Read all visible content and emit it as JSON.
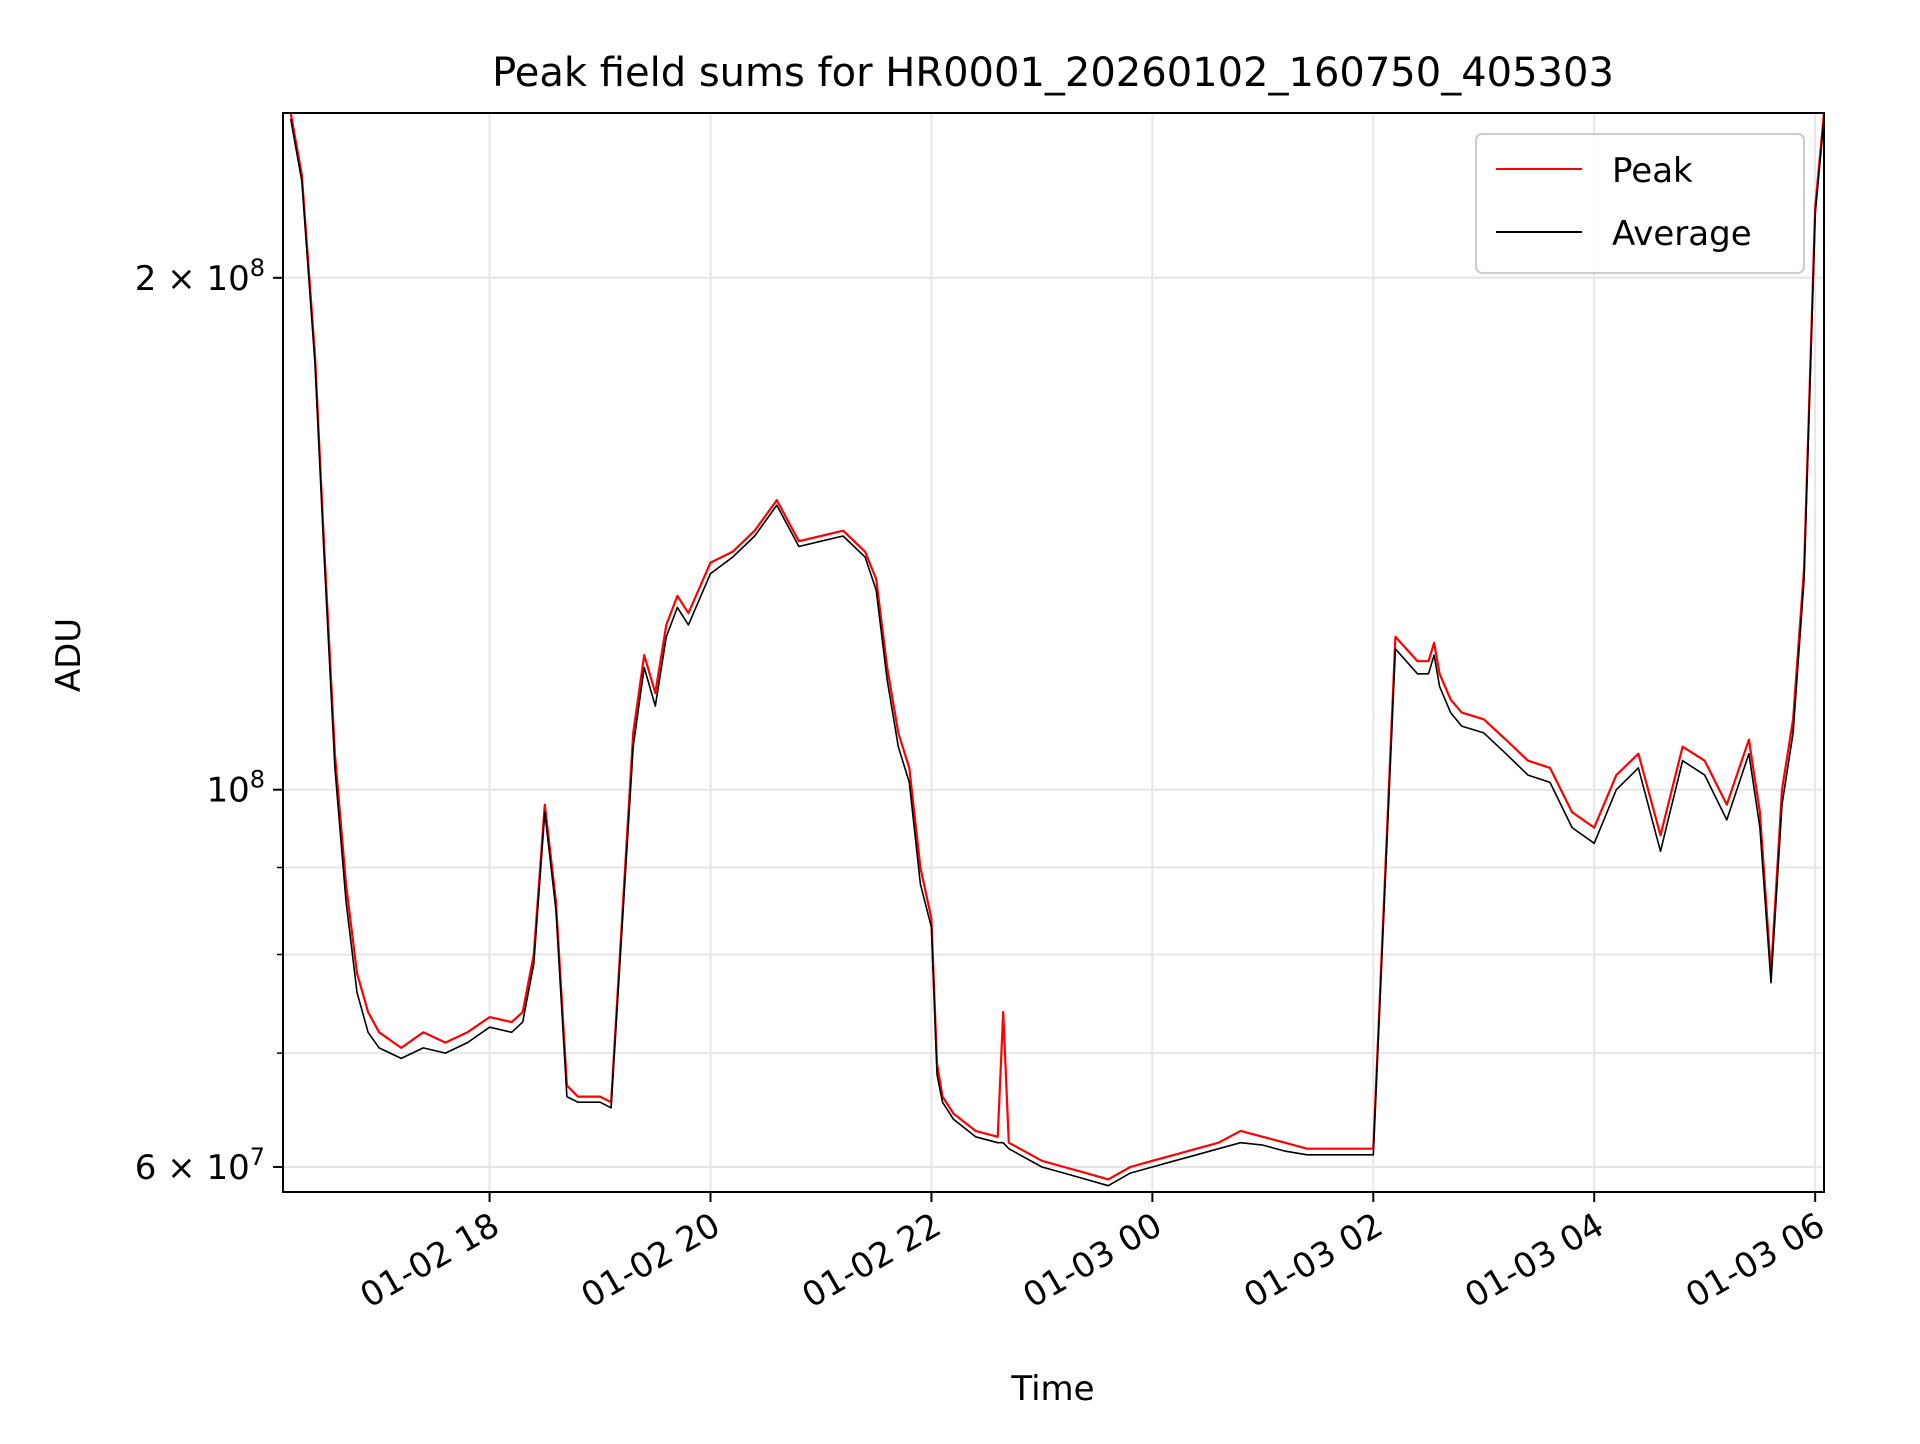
{
  "chart_data": {
    "type": "line",
    "title": "Peak field sums for HR0001_20260102_160750_405303",
    "xlabel": "Time",
    "ylabel": "ADU",
    "yscale": "log",
    "ylim": [
      58000000,
      250000000
    ],
    "xlim_hours": [
      16.13,
      30.08
    ],
    "x_ticks": [
      {
        "label": "01-02 18",
        "hour": 18
      },
      {
        "label": "01-02 20",
        "hour": 20
      },
      {
        "label": "01-02 22",
        "hour": 22
      },
      {
        "label": "01-03 00",
        "hour": 24
      },
      {
        "label": "01-03 02",
        "hour": 26
      },
      {
        "label": "01-03 04",
        "hour": 28
      },
      {
        "label": "01-03 06",
        "hour": 30
      }
    ],
    "y_ticks_major": [
      {
        "value": 60000000,
        "base": "6 × 10",
        "exp": "7"
      },
      {
        "value": 100000000,
        "base": "10",
        "exp": "8"
      },
      {
        "value": 200000000,
        "base": "2 × 10",
        "exp": "8"
      }
    ],
    "y_minor_ticks": [
      70000000,
      80000000,
      90000000
    ],
    "grid": true,
    "legend": {
      "position": "top-right",
      "entries": [
        "Peak",
        "Average"
      ]
    },
    "series": [
      {
        "name": "Peak",
        "color": "#ff0000",
        "x": [
          16.2,
          16.3,
          16.42,
          16.5,
          16.6,
          16.7,
          16.8,
          16.9,
          17.0,
          17.2,
          17.4,
          17.6,
          17.8,
          18.0,
          18.2,
          18.3,
          18.4,
          18.5,
          18.6,
          18.7,
          18.8,
          19.0,
          19.1,
          19.2,
          19.3,
          19.4,
          19.5,
          19.6,
          19.7,
          19.8,
          20.0,
          20.2,
          20.4,
          20.6,
          20.8,
          21.0,
          21.2,
          21.4,
          21.5,
          21.6,
          21.7,
          21.8,
          21.9,
          22.0,
          22.05,
          22.1,
          22.2,
          22.4,
          22.6,
          22.65,
          22.7,
          22.8,
          23.0,
          23.2,
          23.4,
          23.6,
          23.8,
          24.0,
          24.2,
          24.4,
          24.6,
          24.8,
          25.0,
          25.2,
          25.4,
          25.6,
          25.8,
          26.0,
          26.2,
          26.4,
          26.5,
          26.55,
          26.6,
          26.7,
          26.8,
          27.0,
          27.2,
          27.4,
          27.6,
          27.8,
          28.0,
          28.2,
          28.4,
          28.6,
          28.8,
          29.0,
          29.2,
          29.4,
          29.5,
          29.6,
          29.7,
          29.8,
          29.9,
          30.0,
          30.08
        ],
        "values": [
          250000000,
          230000000,
          180000000,
          140000000,
          105000000,
          88000000,
          78000000,
          74000000,
          72000000,
          70500000,
          72000000,
          71000000,
          72000000,
          73500000,
          73000000,
          74000000,
          80000000,
          98000000,
          86000000,
          67000000,
          66000000,
          66000000,
          65500000,
          84000000,
          108000000,
          120000000,
          114000000,
          125000000,
          130000000,
          127000000,
          136000000,
          138000000,
          142000000,
          148000000,
          140000000,
          141000000,
          142000000,
          138000000,
          133000000,
          118000000,
          108000000,
          103000000,
          90000000,
          84000000,
          69000000,
          66000000,
          64500000,
          63000000,
          62500000,
          74000000,
          62000000,
          61500000,
          60500000,
          60000000,
          59500000,
          59000000,
          60000000,
          60500000,
          61000000,
          61500000,
          62000000,
          63000000,
          62500000,
          62000000,
          61500000,
          61500000,
          61500000,
          61500000,
          123000000,
          119000000,
          119000000,
          122000000,
          117000000,
          113000000,
          111000000,
          110000000,
          107000000,
          104000000,
          103000000,
          97000000,
          95000000,
          102000000,
          105000000,
          94000000,
          106000000,
          104000000,
          98000000,
          107000000,
          97000000,
          78000000,
          100000000,
          110000000,
          135000000,
          220000000,
          250000000
        ]
      },
      {
        "name": "Average",
        "color": "#000000",
        "x": [
          16.2,
          16.3,
          16.42,
          16.5,
          16.6,
          16.7,
          16.8,
          16.9,
          17.0,
          17.2,
          17.4,
          17.6,
          17.8,
          18.0,
          18.2,
          18.3,
          18.4,
          18.5,
          18.6,
          18.7,
          18.8,
          19.0,
          19.1,
          19.2,
          19.3,
          19.4,
          19.5,
          19.6,
          19.7,
          19.8,
          20.0,
          20.2,
          20.4,
          20.6,
          20.8,
          21.0,
          21.2,
          21.4,
          21.5,
          21.6,
          21.7,
          21.8,
          21.9,
          22.0,
          22.05,
          22.1,
          22.2,
          22.4,
          22.6,
          22.65,
          22.7,
          22.8,
          23.0,
          23.2,
          23.4,
          23.6,
          23.8,
          24.0,
          24.2,
          24.4,
          24.6,
          24.8,
          25.0,
          25.2,
          25.4,
          25.6,
          25.8,
          26.0,
          26.2,
          26.4,
          26.5,
          26.55,
          26.6,
          26.7,
          26.8,
          27.0,
          27.2,
          27.4,
          27.6,
          27.8,
          28.0,
          28.2,
          28.4,
          28.6,
          28.8,
          29.0,
          29.2,
          29.4,
          29.5,
          29.6,
          29.7,
          29.8,
          29.9,
          30.0,
          30.08
        ],
        "values": [
          248000000,
          228000000,
          178000000,
          138000000,
          103000000,
          86000000,
          76000000,
          72000000,
          70500000,
          69500000,
          70500000,
          70000000,
          71000000,
          72500000,
          72000000,
          73000000,
          79000000,
          97000000,
          85000000,
          66000000,
          65500000,
          65500000,
          65000000,
          83000000,
          106000000,
          118000000,
          112000000,
          123000000,
          128000000,
          125000000,
          134000000,
          137000000,
          141000000,
          147000000,
          139000000,
          140000000,
          141000000,
          137000000,
          131000000,
          116000000,
          106000000,
          101000000,
          88000000,
          83000000,
          68000000,
          65500000,
          64000000,
          62500000,
          62000000,
          62000000,
          61500000,
          61000000,
          60000000,
          59500000,
          59000000,
          58500000,
          59500000,
          60000000,
          60500000,
          61000000,
          61500000,
          62000000,
          61800000,
          61300000,
          61000000,
          61000000,
          61000000,
          61000000,
          121000000,
          117000000,
          117000000,
          120000000,
          115000000,
          111000000,
          109000000,
          108000000,
          105000000,
          102000000,
          101000000,
          95000000,
          93000000,
          100000000,
          103000000,
          92000000,
          104000000,
          102000000,
          96000000,
          105000000,
          95000000,
          77000000,
          98000000,
          108000000,
          133000000,
          218000000,
          248000000
        ]
      }
    ]
  }
}
